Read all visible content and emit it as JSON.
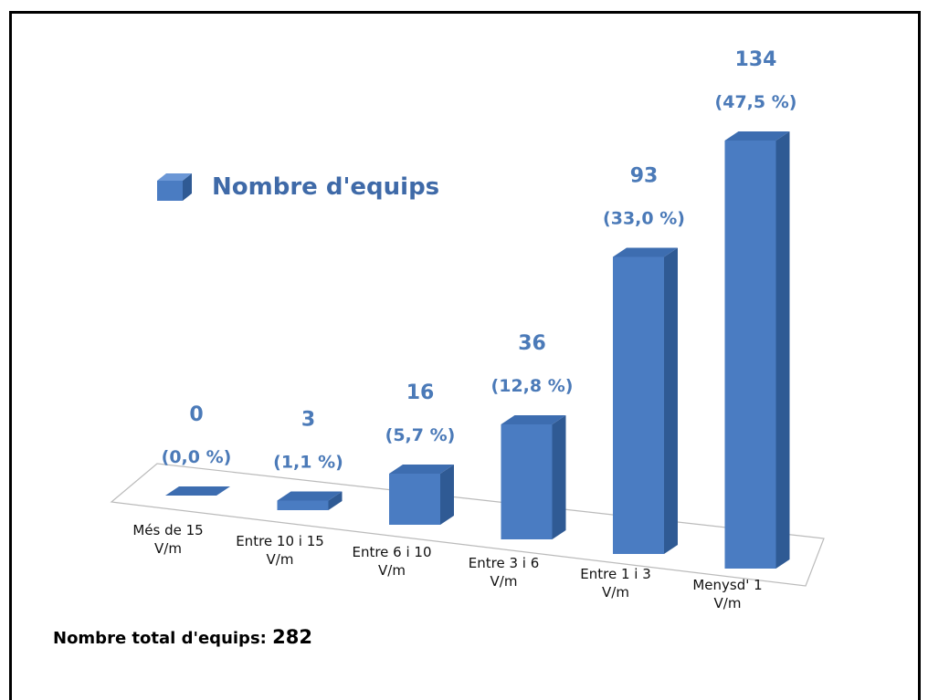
{
  "chart_data": {
    "type": "bar3d",
    "categories": [
      "Més de 15\nV/m",
      "Entre 10 i 15\nV/m",
      "Entre 6 i 10\nV/m",
      "Entre 3 i 6\nV/m",
      "Entre 1 i 3\nV/m",
      "Menysd' 1\nV/m"
    ],
    "series": [
      {
        "name": "Nombre d'equips",
        "color": "#4a7cc2",
        "values": [
          0,
          3,
          16,
          36,
          93,
          134
        ]
      }
    ],
    "percent_labels": [
      "(0,0 %)",
      "(1,1 %)",
      "(5,7 %)",
      "(12,8 %)",
      "(33,0 %)",
      "(47,5 %)"
    ],
    "total_label": "Nombre total d'equips:",
    "total": 282
  }
}
